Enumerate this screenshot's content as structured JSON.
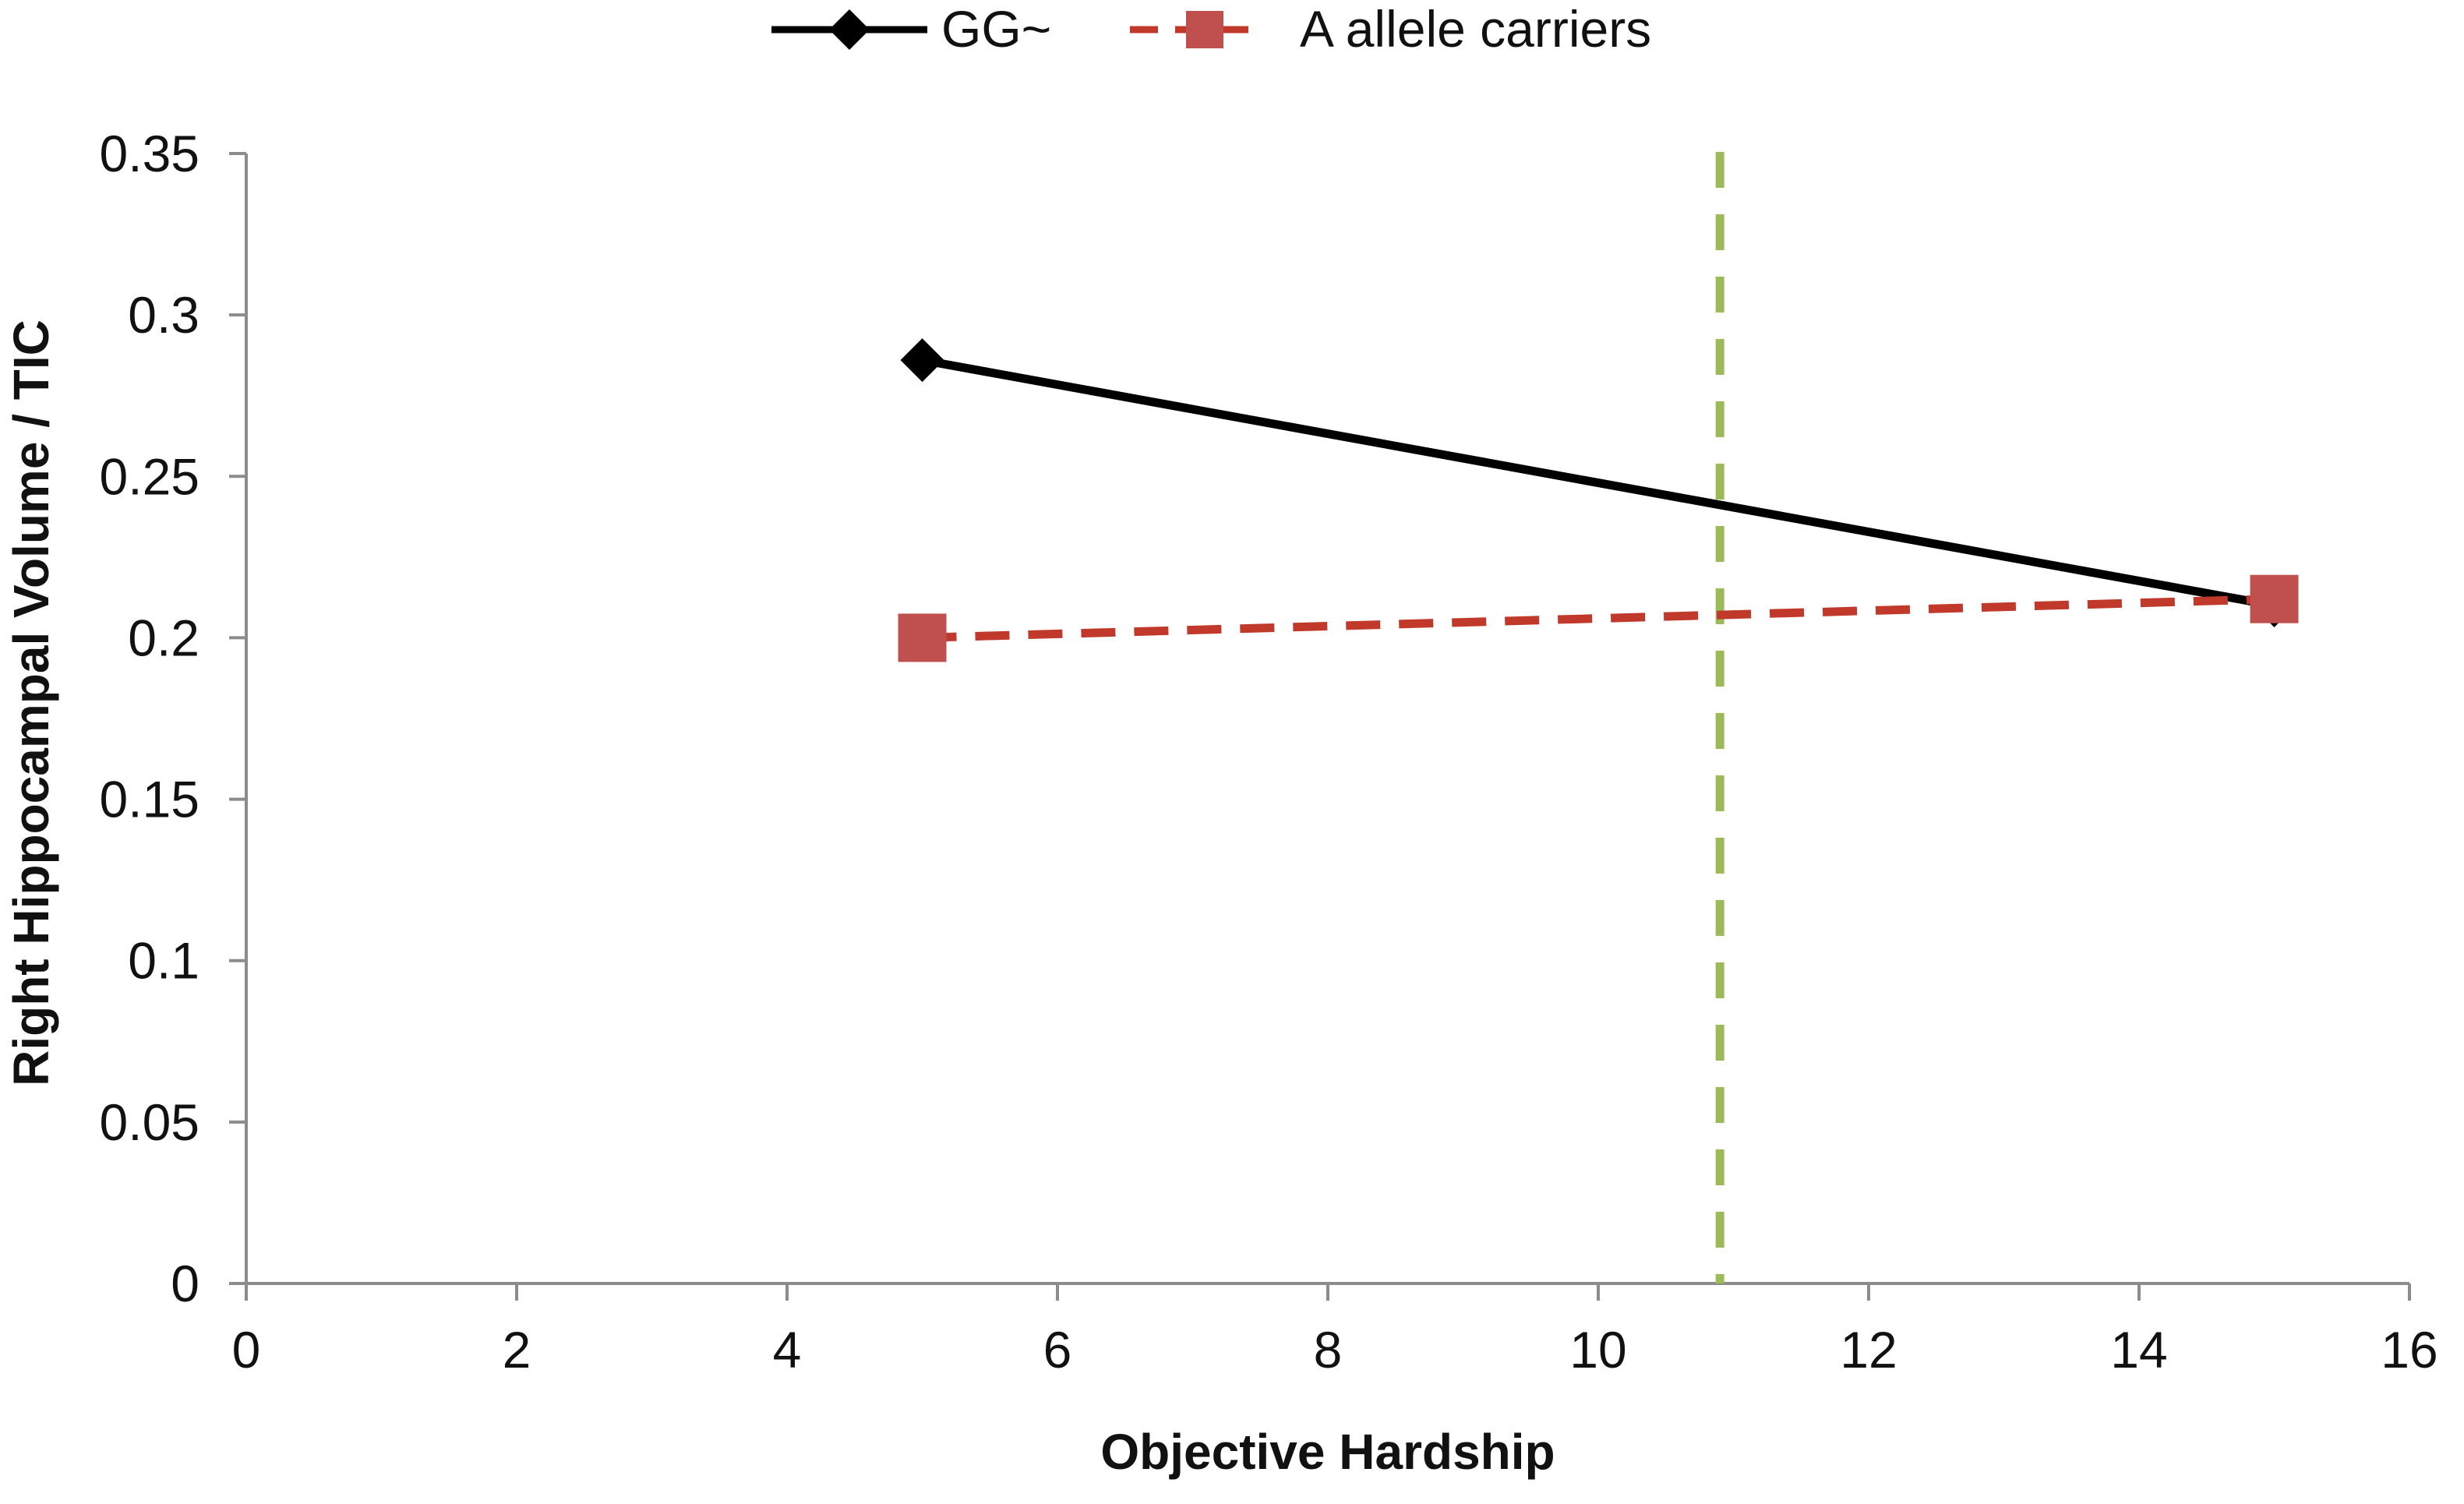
{
  "chart_data": {
    "type": "line",
    "xlabel": "Objective Hardship",
    "ylabel": "Right Hippocampal Volume / TIC",
    "xlim": [
      0,
      16
    ],
    "ylim": [
      0,
      0.35
    ],
    "xticks": [
      "0",
      "2",
      "4",
      "6",
      "8",
      "10",
      "12",
      "14",
      "16"
    ],
    "yticks": [
      "0",
      "0.05",
      "0.1",
      "0.15",
      "0.2",
      "0.25",
      "0.3",
      "0.35"
    ],
    "grid": false,
    "legend_position": "top-center",
    "series": [
      {
        "name": "GG~",
        "color": "#000000",
        "line_style": "solid",
        "marker": "diamond",
        "x": [
          5,
          15
        ],
        "y": [
          0.286,
          0.21
        ]
      },
      {
        "name": "A allele carriers",
        "color": "#c0392b",
        "marker_color": "#c0504d",
        "line_style": "dashed",
        "marker": "square",
        "x": [
          5,
          15
        ],
        "y": [
          0.2,
          0.212
        ]
      }
    ],
    "reference_lines": [
      {
        "orientation": "vertical",
        "x": 10.9,
        "color": "#9bbb59",
        "line_style": "dashed"
      }
    ]
  }
}
